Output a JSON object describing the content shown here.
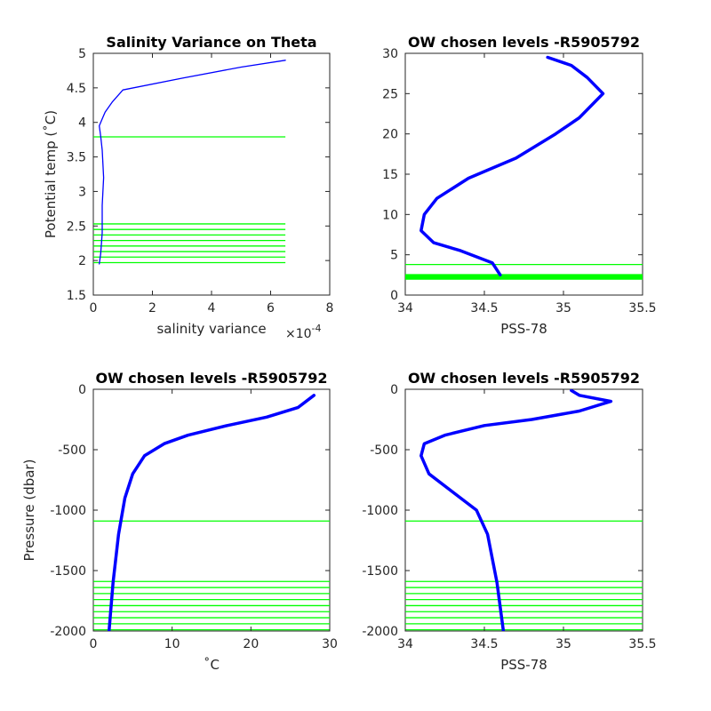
{
  "colors": {
    "profile": "#0000ff",
    "level": "#00ff00",
    "axis": "#262626"
  },
  "chart_data": [
    {
      "type": "line",
      "title": "Salinity Variance on Theta",
      "xlabel": "salinity variance",
      "x_exponent_label": "×10",
      "x_exponent_power": "-4",
      "ylabel": "Potential temp (˚C)",
      "xlim": [
        0,
        8
      ],
      "ylim": [
        1.5,
        5
      ],
      "xticks": [
        0,
        2,
        4,
        6,
        8
      ],
      "yticks": [
        1.5,
        2,
        2.5,
        3,
        3.5,
        4,
        4.5,
        5
      ],
      "xtick_labels": [
        "0",
        "2",
        "4",
        "6",
        "8"
      ],
      "ytick_labels": [
        "1.5",
        "2",
        "2.5",
        "3",
        "3.5",
        "4",
        "4.5",
        "5"
      ],
      "series": [
        {
          "x": [
            0.2,
            0.25,
            0.3,
            0.3,
            0.35,
            0.3,
            0.25,
            0.2,
            0.3,
            0.4,
            0.65,
            1.0,
            3.0,
            5.0,
            6.5
          ],
          "y": [
            1.95,
            2.1,
            2.4,
            2.8,
            3.2,
            3.6,
            3.8,
            3.95,
            4.05,
            4.15,
            4.3,
            4.47,
            4.64,
            4.8,
            4.9
          ]
        }
      ],
      "hlines": {
        "x_range": [
          0,
          6.5
        ],
        "y": [
          1.97,
          2.05,
          2.13,
          2.21,
          2.29,
          2.37,
          2.45,
          2.53,
          3.79
        ]
      }
    },
    {
      "type": "line",
      "title": "OW chosen levels -R5905792",
      "xlabel": "PSS-78",
      "ylabel": "",
      "xlim": [
        34,
        35.5
      ],
      "ylim": [
        0,
        30
      ],
      "xticks": [
        34,
        34.5,
        35,
        35.5
      ],
      "yticks": [
        0,
        5,
        10,
        15,
        20,
        25,
        30
      ],
      "xtick_labels": [
        "34",
        "34.5",
        "35",
        "35.5"
      ],
      "ytick_labels": [
        "0",
        "5",
        "10",
        "15",
        "20",
        "25",
        "30"
      ],
      "series": [
        {
          "x": [
            34.6,
            34.55,
            34.35,
            34.18,
            34.1,
            34.12,
            34.2,
            34.4,
            34.7,
            34.95,
            35.1,
            35.2,
            35.25,
            35.15,
            35.05,
            34.9
          ],
          "y": [
            2.5,
            4,
            5.5,
            6.5,
            8,
            10,
            12,
            14.5,
            17,
            20,
            22,
            24,
            25,
            27,
            28.5,
            29.5
          ]
        }
      ],
      "hlines": {
        "x_range": [
          34,
          35.5
        ],
        "y": [
          1.97,
          2.05,
          2.13,
          2.21,
          2.29,
          2.37,
          2.45,
          2.53,
          3.79
        ]
      }
    },
    {
      "type": "line",
      "title": "OW chosen levels -R5905792",
      "xlabel": "˚C",
      "ylabel": "Pressure (dbar)",
      "xlim": [
        0,
        30
      ],
      "ylim": [
        -2000,
        0
      ],
      "xticks": [
        0,
        10,
        20,
        30
      ],
      "yticks": [
        -2000,
        -1500,
        -1000,
        -500,
        0
      ],
      "xtick_labels": [
        "0",
        "10",
        "20",
        "30"
      ],
      "ytick_labels": [
        "-2000",
        "-1500",
        "-1000",
        "-500",
        "0"
      ],
      "series": [
        {
          "x": [
            2,
            2.5,
            3.2,
            4,
            5,
            6.5,
            9,
            12,
            17,
            22,
            26,
            28
          ],
          "y": [
            -2000,
            -1600,
            -1200,
            -900,
            -700,
            -550,
            -450,
            -380,
            -300,
            -230,
            -150,
            -50
          ]
        }
      ],
      "hlines": {
        "x_range": [
          0,
          30
        ],
        "y": [
          -1090,
          -1590,
          -1640,
          -1690,
          -1740,
          -1790,
          -1840,
          -1890,
          -1940,
          -1990
        ]
      }
    },
    {
      "type": "line",
      "title": "OW chosen levels -R5905792",
      "xlabel": "PSS-78",
      "ylabel": "",
      "xlim": [
        34,
        35.5
      ],
      "ylim": [
        -2000,
        0
      ],
      "xticks": [
        34,
        34.5,
        35,
        35.5
      ],
      "yticks": [
        -2000,
        -1500,
        -1000,
        -500,
        0
      ],
      "xtick_labels": [
        "34",
        "34.5",
        "35",
        "35.5"
      ],
      "ytick_labels": [
        "-2000",
        "-1500",
        "-1000",
        "-500",
        "0"
      ],
      "series": [
        {
          "x": [
            34.62,
            34.58,
            34.52,
            34.45,
            34.3,
            34.15,
            34.1,
            34.12,
            34.25,
            34.5,
            34.8,
            35.1,
            35.3,
            35.1,
            35.05
          ],
          "y": [
            -2000,
            -1600,
            -1200,
            -1000,
            -850,
            -700,
            -550,
            -450,
            -380,
            -300,
            -250,
            -180,
            -100,
            -50,
            -10
          ]
        }
      ],
      "hlines": {
        "x_range": [
          34,
          35.5
        ],
        "y": [
          -1090,
          -1590,
          -1640,
          -1690,
          -1740,
          -1790,
          -1840,
          -1890,
          -1940,
          -1990
        ]
      }
    }
  ]
}
